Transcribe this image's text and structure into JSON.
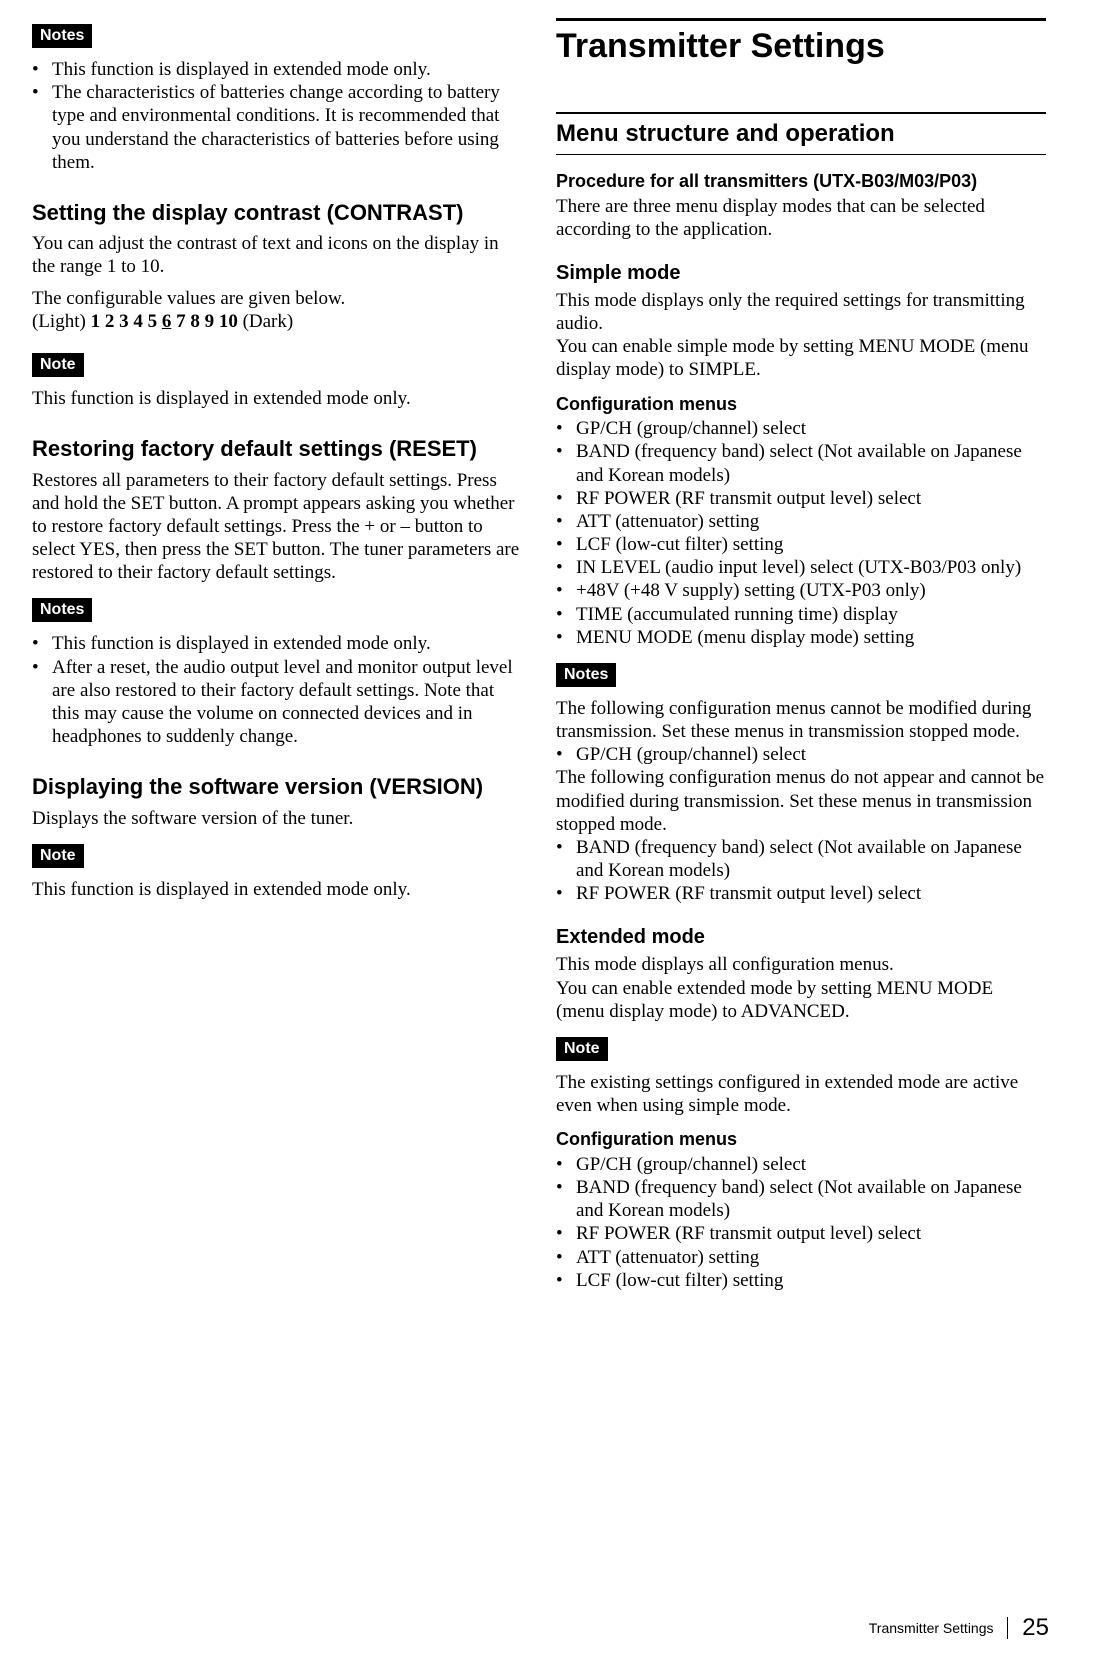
{
  "left": {
    "notes1_label": "Notes",
    "notes1_items": [
      "This function is displayed in extended mode only.",
      "The characteristics of batteries change according to battery type and environmental conditions. It is recommended that you understand the characteristics of batteries before using them."
    ],
    "contrast_heading": "Setting the display contrast (CONTRAST)",
    "contrast_p1": "You can adjust the contrast of text and icons on the display in the range 1 to 10.",
    "contrast_p2": "The configurable values are given below.",
    "contrast_light": "(Light) ",
    "contrast_values": [
      "1",
      "2",
      "3",
      "4",
      "5",
      "6",
      "7",
      "8",
      "9",
      "10"
    ],
    "contrast_default_index": 5,
    "contrast_dark": " (Dark)",
    "note2_label": "Note",
    "note2_text": "This function is displayed in extended mode only.",
    "reset_heading": "Restoring factory default settings (RESET)",
    "reset_p": "Restores all parameters to their factory default settings. Press and hold the SET button. A prompt appears asking you whether to restore factory default settings. Press the + or – button to select YES, then press the SET button. The tuner parameters are restored to their factory default settings.",
    "notes3_label": "Notes",
    "notes3_items": [
      "This function is displayed in extended mode only.",
      "After a reset, the audio output level and monitor output level are also restored to their factory default settings. Note that this may cause the volume on connected devices and in headphones to suddenly change."
    ],
    "version_heading": "Displaying the software version (VERSION)",
    "version_p": "Displays the software version of the tuner.",
    "note4_label": "Note",
    "note4_text": "This function is displayed in extended mode only."
  },
  "right": {
    "chapter": "Transmitter Settings",
    "section": "Menu structure and operation",
    "proc_heading": "Procedure for all transmitters (UTX-B03/M03/P03)",
    "proc_p": "There are three menu display modes that can be selected according to the application.",
    "simple_heading": "Simple mode",
    "simple_p1": "This mode displays only the required settings for transmitting audio.",
    "simple_p2": "You can enable simple mode by setting MENU MODE (menu display mode) to SIMPLE.",
    "simple_cfg_heading": "Configuration menus",
    "simple_cfg_items": [
      "GP/CH (group/channel) select",
      "BAND (frequency band) select (Not available on Japanese and Korean models)",
      "RF POWER (RF transmit output level) select",
      "ATT (attenuator) setting",
      "LCF (low-cut filter) setting",
      "IN LEVEL (audio input level) select (UTX-B03/P03 only)",
      "+48V (+48 V supply) setting (UTX-P03 only)",
      "TIME (accumulated running time) display",
      "MENU MODE (menu display mode) setting"
    ],
    "notes5_label": "Notes",
    "notes5_p1": "The following configuration menus cannot be modified during transmission. Set these menus in transmission stopped mode.",
    "notes5_list1": [
      "GP/CH (group/channel) select"
    ],
    "notes5_p2": "The following configuration menus do not appear and cannot be modified during transmission. Set these menus in transmission stopped mode.",
    "notes5_list2": [
      "BAND (frequency band) select (Not available on Japanese and Korean models)",
      "RF POWER (RF transmit output level) select"
    ],
    "ext_heading": "Extended mode",
    "ext_p1": "This mode displays all configuration menus.",
    "ext_p2": "You can enable extended mode by setting MENU MODE (menu display mode) to ADVANCED.",
    "note6_label": "Note",
    "note6_text": "The existing settings configured in extended mode are active even when using simple mode.",
    "ext_cfg_heading": "Configuration menus",
    "ext_cfg_items": [
      "GP/CH (group/channel) select",
      "BAND (frequency band) select (Not available on Japanese and Korean models)",
      "RF POWER (RF transmit output level) select",
      "ATT (attenuator) setting",
      "LCF (low-cut filter) setting"
    ]
  },
  "footer": {
    "chapter": "Transmitter Settings",
    "page": "25"
  }
}
